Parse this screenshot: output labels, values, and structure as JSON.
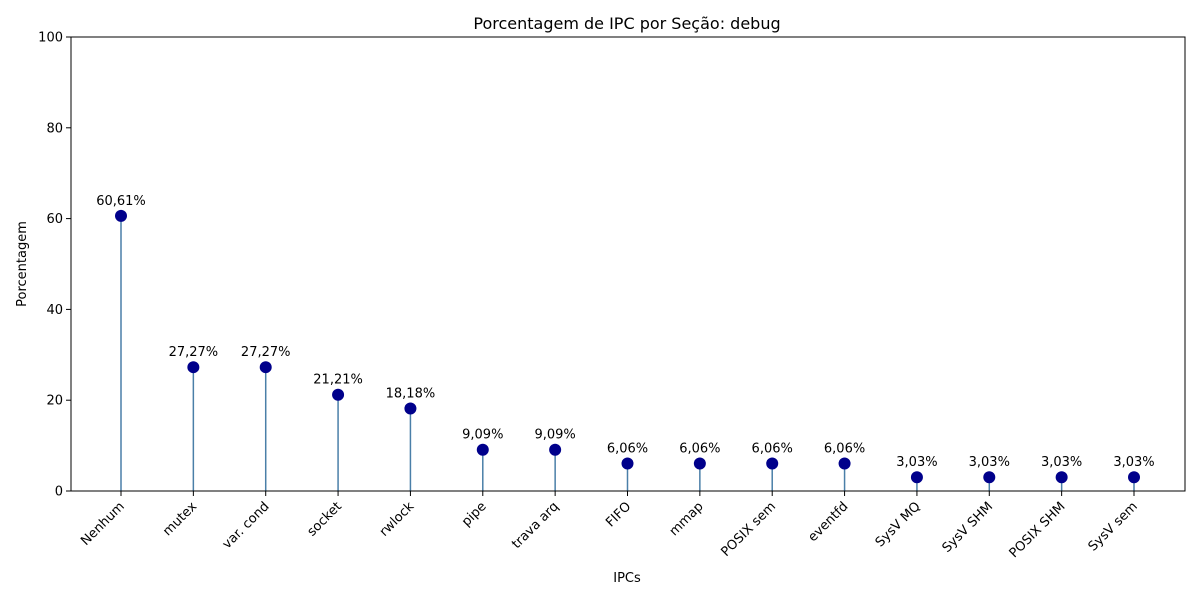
{
  "chart_data": {
    "type": "lollipop",
    "title": "Porcentagem de IPC por Seção: debug",
    "xlabel": "IPCs",
    "ylabel": "Porcentagem",
    "ylim": [
      0,
      100
    ],
    "yticks": [
      0,
      20,
      40,
      60,
      80,
      100
    ],
    "grid": false,
    "categories": [
      "Nenhum",
      "mutex",
      "var. cond",
      "socket",
      "rwlock",
      "pipe",
      "trava arq",
      "FIFO",
      "mmap",
      "POSIX sem",
      "eventfd",
      "SysV MQ",
      "SysV SHM",
      "POSIX SHM",
      "SysV sem"
    ],
    "values": [
      60.61,
      27.27,
      27.27,
      21.21,
      18.18,
      9.09,
      9.09,
      6.06,
      6.06,
      6.06,
      6.06,
      3.03,
      3.03,
      3.03,
      3.03
    ],
    "value_labels": [
      "60,61%",
      "27,27%",
      "27,27%",
      "21,21%",
      "18,18%",
      "9,09%",
      "9,09%",
      "6,06%",
      "6,06%",
      "6,06%",
      "6,06%",
      "3,03%",
      "3,03%",
      "3,03%",
      "3,03%"
    ],
    "colors": {
      "stem": "#4a7fa8",
      "marker": "#00008b"
    }
  }
}
